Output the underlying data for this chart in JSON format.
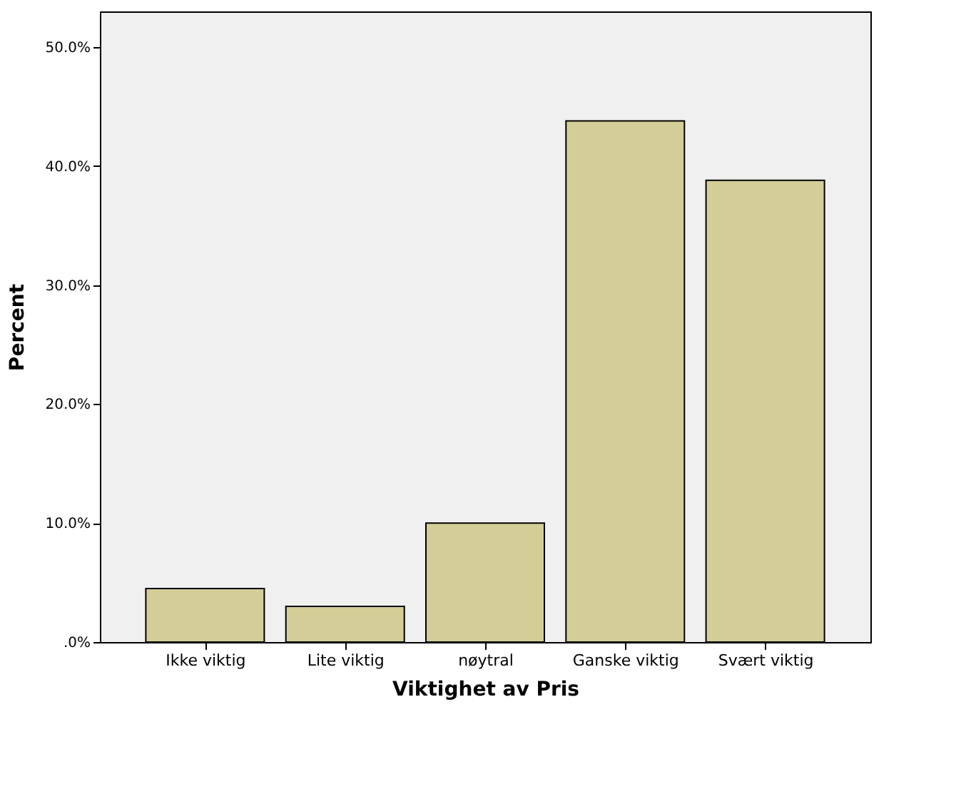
{
  "chart_data": {
    "type": "bar",
    "xlabel": "Viktighet av Pris",
    "ylabel": "Percent",
    "categories": [
      "Ikke viktig",
      "Lite viktig",
      "nøytral",
      "Ganske viktig",
      "Svært viktig"
    ],
    "values": [
      4.5,
      3.0,
      10.0,
      43.8,
      38.8
    ],
    "color": "#d3ce97",
    "ylim": [
      0,
      53
    ],
    "yticks": [
      {
        "value": 0,
        "label": ".0%"
      },
      {
        "value": 10,
        "label": "10.0%"
      },
      {
        "value": 20,
        "label": "20.0%"
      },
      {
        "value": 30,
        "label": "30.0%"
      },
      {
        "value": 40,
        "label": "40.0%"
      },
      {
        "value": 50,
        "label": "50.0%"
      }
    ],
    "grid": false
  }
}
